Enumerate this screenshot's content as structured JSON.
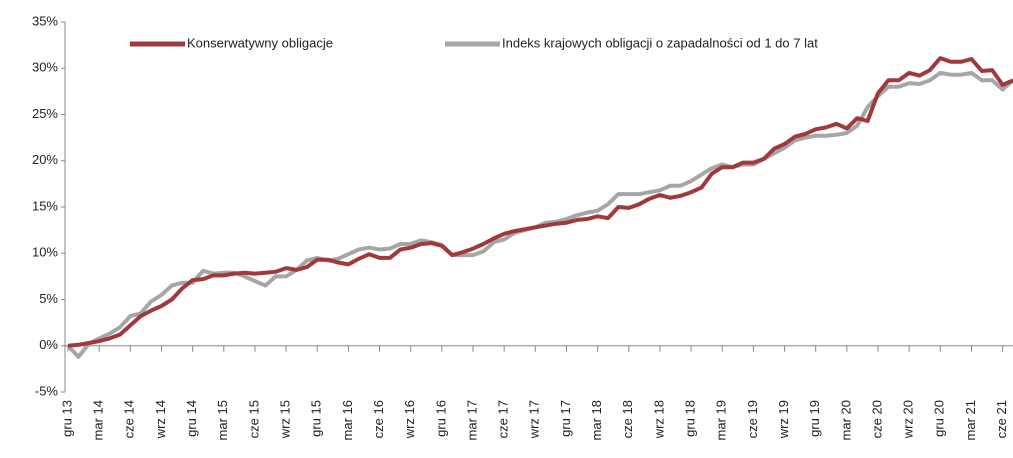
{
  "chart_data": {
    "type": "line",
    "categories": [
      "gru 13",
      null,
      null,
      "mar 14",
      null,
      null,
      "cze 14",
      null,
      null,
      "wrz 14",
      null,
      null,
      "gru 14",
      null,
      null,
      "mar 15",
      null,
      null,
      "cze 15",
      null,
      null,
      "wrz 15",
      null,
      null,
      "gru 15",
      null,
      null,
      "mar 16",
      null,
      null,
      "cze 16",
      null,
      null,
      "wrz 16",
      null,
      null,
      "gru 16",
      null,
      null,
      "mar 17",
      null,
      null,
      "cze 17",
      null,
      null,
      "wrz 17",
      null,
      null,
      "gru 17",
      null,
      null,
      "mar 18",
      null,
      null,
      "cze 18",
      null,
      null,
      "wrz 18",
      null,
      null,
      "gru 18",
      null,
      null,
      "mar 19",
      null,
      null,
      "cze 19",
      null,
      null,
      "wrz 19",
      null,
      null,
      "gru 19",
      null,
      null,
      "mar 20",
      null,
      null,
      "cze 20",
      null,
      null,
      "wrz 20",
      null,
      null,
      "gru 20",
      null,
      null,
      "mar 21",
      null,
      null,
      "cze 21",
      null
    ],
    "series": [
      {
        "name": "Konserwatywny obligacje",
        "color": "#a0393c",
        "values": [
          0,
          0.1,
          0.3,
          0.5,
          0.8,
          1.2,
          2.2,
          3.2,
          3.8,
          4.3,
          5.0,
          6.2,
          7.1,
          7.2,
          7.6,
          7.6,
          7.8,
          7.9,
          7.8,
          7.9,
          8.0,
          8.4,
          8.2,
          8.5,
          9.3,
          9.3,
          9.0,
          8.8,
          9.4,
          9.9,
          9.5,
          9.5,
          10.4,
          10.6,
          11.0,
          11.1,
          10.8,
          9.8,
          10.1,
          10.5,
          11.0,
          11.6,
          12.1,
          12.4,
          12.6,
          12.8,
          13.0,
          13.2,
          13.3,
          13.6,
          13.7,
          14.0,
          13.8,
          15.0,
          14.9,
          15.3,
          15.9,
          16.3,
          16.0,
          16.2,
          16.6,
          17.1,
          18.6,
          19.3,
          19.3,
          19.8,
          19.8,
          20.2,
          21.3,
          21.8,
          22.6,
          22.9,
          23.4,
          23.6,
          24.0,
          23.5,
          24.6,
          24.3,
          27.3,
          28.7,
          28.7,
          29.5,
          29.2,
          29.8,
          31.1,
          30.7,
          30.7,
          31.0,
          29.7,
          29.8,
          28.2,
          28.7
        ]
      },
      {
        "name": "Indeks krajowych obligacji o zapadalności od 1 do 7 lat",
        "color": "#a6a6a6",
        "values": [
          0,
          -1.2,
          0.2,
          0.8,
          1.3,
          2.0,
          3.2,
          3.5,
          4.8,
          5.5,
          6.5,
          6.8,
          6.8,
          8.1,
          7.8,
          7.9,
          7.9,
          7.5,
          7.0,
          6.5,
          7.5,
          7.5,
          8.2,
          9.2,
          9.5,
          9.2,
          9.4,
          9.9,
          10.4,
          10.6,
          10.4,
          10.5,
          11.0,
          11.0,
          11.4,
          11.2,
          10.9,
          9.8,
          9.8,
          9.8,
          10.2,
          11.2,
          11.5,
          12.2,
          12.5,
          12.8,
          13.3,
          13.4,
          13.7,
          14.1,
          14.4,
          14.6,
          15.3,
          16.4,
          16.4,
          16.4,
          16.6,
          16.8,
          17.3,
          17.3,
          17.8,
          18.5,
          19.2,
          19.6,
          19.3,
          19.6,
          19.6,
          20.2,
          20.8,
          21.4,
          22.2,
          22.5,
          22.7,
          22.7,
          22.8,
          23.0,
          23.8,
          25.8,
          27.0,
          28.0,
          28.0,
          28.4,
          28.3,
          28.7,
          29.5,
          29.3,
          29.3,
          29.5,
          28.7,
          28.7,
          27.7,
          28.7
        ]
      }
    ],
    "ylim": [
      -5,
      35
    ],
    "yticks": [
      {
        "value": -5,
        "label": "-5%"
      },
      {
        "value": 0,
        "label": "0%"
      },
      {
        "value": 5,
        "label": "5%"
      },
      {
        "value": 10,
        "label": "10%"
      },
      {
        "value": 15,
        "label": "15%"
      },
      {
        "value": 20,
        "label": "20%"
      },
      {
        "value": 25,
        "label": "25%"
      },
      {
        "value": 30,
        "label": "30%"
      },
      {
        "value": 35,
        "label": "35%"
      }
    ],
    "legend": "top"
  }
}
